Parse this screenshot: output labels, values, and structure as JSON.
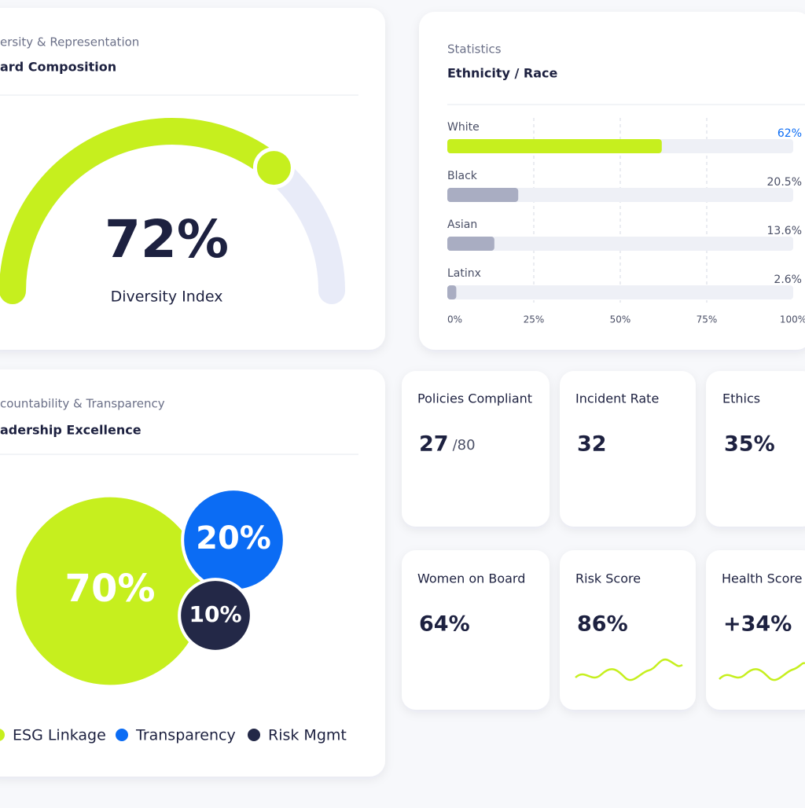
{
  "gauge_card": {
    "subtitle": "ersity & Representation",
    "title": "ard Composition",
    "value": 72,
    "value_label": "72%",
    "label": "Diversity Index",
    "lim": [
      0,
      100
    ],
    "color": "#c6ef1e"
  },
  "bar_card": {
    "subtitle": "Statistics",
    "title": "Ethnicity / Race",
    "categories": [
      "White",
      "Black",
      "Asian",
      "Latinx"
    ],
    "values": [
      62,
      20.5,
      13.6,
      2.6
    ],
    "value_labels": [
      "62%",
      "20.5%",
      "13.6%",
      "2.6%"
    ],
    "colors": [
      "#c6ef1e",
      "#a9adc2",
      "#a9adc2",
      "#a9adc2"
    ],
    "xlim": [
      0,
      100
    ],
    "xticks": [
      {
        "value": 0,
        "label": "0%"
      },
      {
        "value": 25,
        "label": "25%"
      },
      {
        "value": 50,
        "label": "50%"
      },
      {
        "value": 75,
        "label": "75%"
      },
      {
        "value": 100,
        "label": "100%"
      }
    ]
  },
  "venn_card": {
    "subtitle": "countability & Transparency",
    "title": "adership Excellence",
    "values": [
      70,
      20,
      10
    ],
    "value_labels": [
      "70%",
      "20%",
      "10%"
    ],
    "legend": [
      "ESG Linkage",
      "Transparency",
      "Risk Mgmt"
    ],
    "colors": [
      "#c6ef1e",
      "#0b6cf4",
      "#232847"
    ]
  },
  "kpis": [
    {
      "label": "Policies Compliant",
      "value": "27",
      "suffix": "/80"
    },
    {
      "label": "Incident Rate",
      "value": "32"
    },
    {
      "label": "Ethics",
      "value": "35%"
    },
    {
      "label": "Women on Board",
      "value": "64%"
    },
    {
      "label": "Risk Score",
      "value": "86%"
    },
    {
      "label": "Health Score",
      "value": "+34%"
    }
  ]
}
